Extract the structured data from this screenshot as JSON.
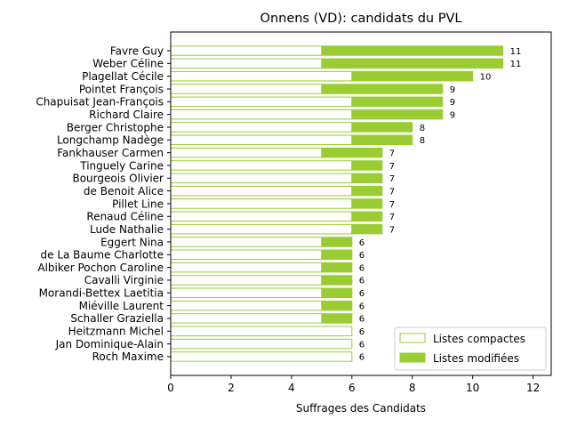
{
  "chart_data": {
    "type": "bar",
    "orientation": "horizontal",
    "stacked": true,
    "title": "Onnens (VD): candidats du PVL",
    "xlabel": "Suffrages des Candidats",
    "ylabel": "",
    "xlim": [
      0,
      12.6
    ],
    "xticks": [
      0,
      2,
      4,
      6,
      8,
      10,
      12
    ],
    "grid": false,
    "legend_position": "lower-right",
    "colors": {
      "accent": "#9acd32",
      "fill_empty": "#ffffff"
    },
    "categories": [
      "Favre Guy",
      "Weber Céline",
      "Plagellat Cécile",
      "Pointet François",
      "Chapuisat Jean-François",
      "Richard Claire",
      "Berger Christophe",
      "Longchamp Nadège",
      "Fankhauser Carmen",
      "Tinguely Carine",
      "Bourgeois Olivier",
      "de Benoit Alice",
      "Pillet Line",
      "Renaud Céline",
      "Lude Nathalie",
      "Eggert Nina",
      "de La Baume Charlotte",
      "Albiker Pochon Caroline",
      "Cavalli Virginie",
      "Morandi-Bettex Laetitia",
      "Miéville Laurent",
      "Schaller Graziella",
      "Heitzmann Michel",
      "Jan Dominique-Alain",
      "Roch Maxime"
    ],
    "series": [
      {
        "name": "Listes compactes",
        "values": [
          5,
          5,
          6,
          5,
          6,
          6,
          6,
          6,
          5,
          6,
          6,
          6,
          6,
          6,
          6,
          5,
          5,
          5,
          5,
          5,
          5,
          5,
          6,
          6,
          6
        ]
      },
      {
        "name": "Listes modifiées",
        "values": [
          6,
          6,
          4,
          4,
          3,
          3,
          2,
          2,
          2,
          1,
          1,
          1,
          1,
          1,
          1,
          1,
          1,
          1,
          1,
          1,
          1,
          1,
          0,
          0,
          0
        ]
      }
    ],
    "totals": [
      11,
      11,
      10,
      9,
      9,
      9,
      8,
      8,
      7,
      7,
      7,
      7,
      7,
      7,
      7,
      6,
      6,
      6,
      6,
      6,
      6,
      6,
      6,
      6,
      6
    ]
  }
}
